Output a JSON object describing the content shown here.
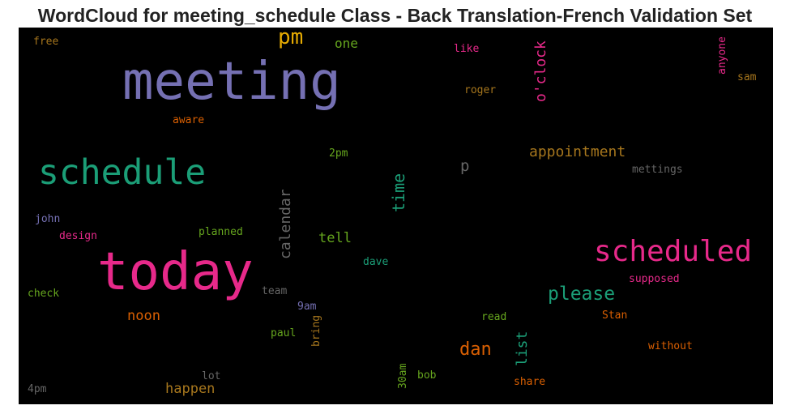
{
  "title": "WordCloud for meeting_schedule Class - Back Translation-French Validation Set",
  "words": [
    {
      "text": "meeting",
      "color": "#7570b3"
    },
    {
      "text": "today",
      "color": "#e7298a"
    },
    {
      "text": "schedule",
      "color": "#1b9e77"
    },
    {
      "text": "scheduled",
      "color": "#e7298a"
    },
    {
      "text": "pm",
      "color": "#e6ab02"
    },
    {
      "text": "please",
      "color": "#1b9e77"
    },
    {
      "text": "dan",
      "color": "#d95f02"
    },
    {
      "text": "appointment",
      "color": "#a6761d"
    },
    {
      "text": "o'clock",
      "color": "#e7298a"
    },
    {
      "text": "time",
      "color": "#1b9e77"
    },
    {
      "text": "calendar",
      "color": "#666666"
    },
    {
      "text": "tell",
      "color": "#66a61e"
    },
    {
      "text": "noon",
      "color": "#d95f02"
    },
    {
      "text": "happen",
      "color": "#a6761d"
    },
    {
      "text": "list",
      "color": "#1b9e77"
    },
    {
      "text": "one",
      "color": "#66a61e"
    },
    {
      "text": "p",
      "color": "#666666"
    },
    {
      "text": "free",
      "color": "#a6761d"
    },
    {
      "text": "like",
      "color": "#e7298a"
    },
    {
      "text": "anyone",
      "color": "#e7298a"
    },
    {
      "text": "sam",
      "color": "#a6761d"
    },
    {
      "text": "roger",
      "color": "#a6761d"
    },
    {
      "text": "aware",
      "color": "#d95f02"
    },
    {
      "text": "2pm",
      "color": "#66a61e"
    },
    {
      "text": "mettings",
      "color": "#666666"
    },
    {
      "text": "john",
      "color": "#7570b3"
    },
    {
      "text": "design",
      "color": "#e7298a"
    },
    {
      "text": "planned",
      "color": "#66a61e"
    },
    {
      "text": "dave",
      "color": "#1b9e77"
    },
    {
      "text": "supposed",
      "color": "#e7298a"
    },
    {
      "text": "check",
      "color": "#66a61e"
    },
    {
      "text": "team",
      "color": "#666666"
    },
    {
      "text": "9am",
      "color": "#7570b3"
    },
    {
      "text": "read",
      "color": "#66a61e"
    },
    {
      "text": "Stan",
      "color": "#d95f02"
    },
    {
      "text": "paul",
      "color": "#66a61e"
    },
    {
      "text": "bring",
      "color": "#a6761d"
    },
    {
      "text": "without",
      "color": "#d95f02"
    },
    {
      "text": "lot",
      "color": "#666666"
    },
    {
      "text": "30am",
      "color": "#66a61e"
    },
    {
      "text": "bob",
      "color": "#66a61e"
    },
    {
      "text": "share",
      "color": "#d95f02"
    },
    {
      "text": "4pm",
      "color": "#666666"
    }
  ]
}
